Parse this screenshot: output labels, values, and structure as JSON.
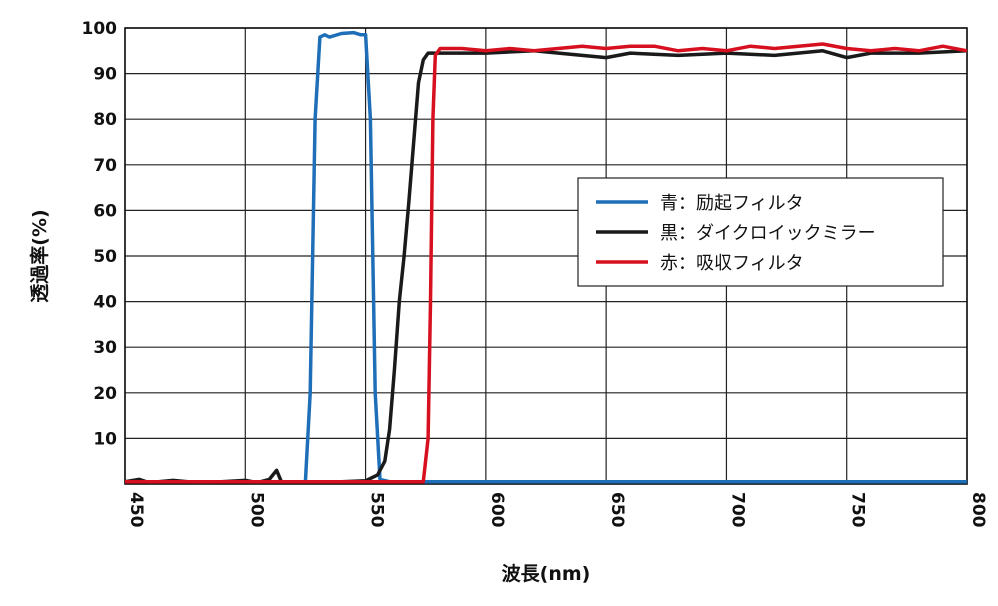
{
  "chart_data": {
    "type": "line",
    "x_label": "波長(nm)",
    "y_label": "透過率(%)",
    "xlim": [
      450,
      800
    ],
    "xticks": [
      450,
      500,
      550,
      600,
      650,
      700,
      750,
      800
    ],
    "ylim": [
      0,
      100
    ],
    "yticks": [
      10,
      20,
      30,
      40,
      50,
      60,
      70,
      80,
      90,
      100
    ],
    "grid": true,
    "legend_position": "right",
    "series": [
      {
        "name": "青：励起フィルタ",
        "color": "#1f6fb8",
        "x": [
          450,
          500,
          520,
          525,
          527,
          529,
          531,
          533,
          535,
          540,
          545,
          548,
          550,
          552,
          554,
          556,
          560,
          600,
          650,
          700,
          750,
          800
        ],
        "values": [
          0.5,
          0.5,
          0.5,
          0.5,
          20,
          80,
          98,
          98.5,
          98,
          98.8,
          99,
          98.5,
          98.5,
          80,
          20,
          1,
          0.5,
          0.5,
          0.5,
          0.5,
          0.5,
          0.5
        ]
      },
      {
        "name": "黒：ダイクロイックミラー",
        "color": "#1a1a1a",
        "x": [
          450,
          456,
          460,
          470,
          480,
          490,
          500,
          505,
          510,
          513,
          515,
          520,
          540,
          550,
          555,
          558,
          560,
          562,
          564,
          566,
          568,
          570,
          572,
          574,
          576,
          580,
          600,
          620,
          640,
          650,
          660,
          680,
          700,
          720,
          740,
          750,
          760,
          780,
          800
        ],
        "values": [
          0.5,
          1,
          0.3,
          0.8,
          0.3,
          0.5,
          0.8,
          0.3,
          1,
          3,
          0.5,
          0.5,
          0.5,
          0.7,
          2,
          5,
          12,
          25,
          40,
          50,
          62,
          75,
          88,
          93,
          94.5,
          94.5,
          94.5,
          95,
          94,
          93.5,
          94.5,
          94,
          94.5,
          94,
          95,
          93.5,
          94.5,
          94.5,
          95
        ]
      },
      {
        "name": "赤：吸収フィルタ",
        "color": "#d7101f",
        "x": [
          450,
          570,
          574,
          576,
          577,
          578,
          579,
          581,
          590,
          600,
          610,
          620,
          630,
          640,
          650,
          660,
          670,
          680,
          690,
          700,
          710,
          720,
          730,
          740,
          750,
          760,
          770,
          780,
          790,
          800
        ],
        "values": [
          0.5,
          0.5,
          0.5,
          10,
          40,
          80,
          94,
          95.5,
          95.5,
          95,
          95.5,
          95,
          95.5,
          96,
          95.5,
          96,
          96,
          95,
          95.5,
          95,
          96,
          95.5,
          96,
          96.5,
          95.5,
          95,
          95.5,
          95,
          96,
          95
        ]
      }
    ]
  }
}
